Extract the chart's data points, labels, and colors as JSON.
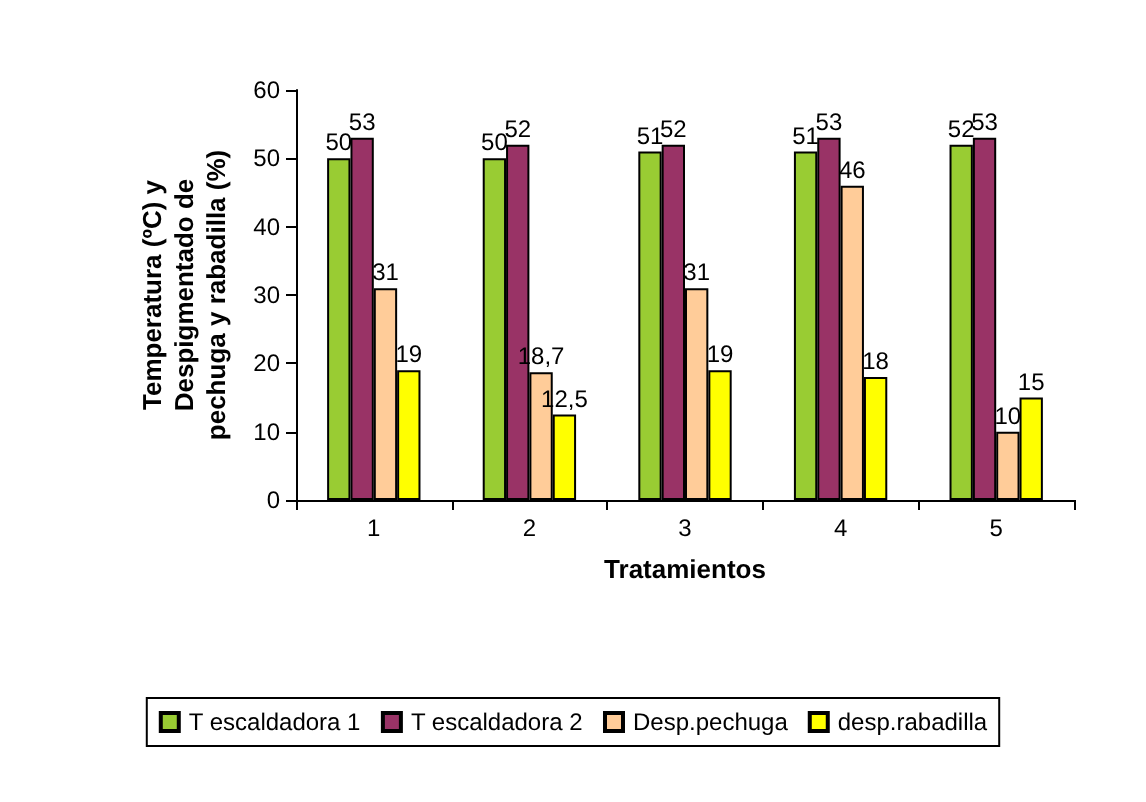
{
  "chart_data": {
    "type": "bar",
    "xlabel": "Tratamientos",
    "ylabel": "Temperatura (ºC) y\nDespigmentado de\npechuga y rabadilla (%)",
    "categories": [
      "1",
      "2",
      "3",
      "4",
      "5"
    ],
    "series": [
      {
        "name": "T escaldadora 1",
        "color": "#99cc33",
        "values": [
          50,
          50,
          51,
          51,
          52
        ],
        "value_labels": [
          "50",
          "50",
          "51",
          "51",
          "52"
        ]
      },
      {
        "name": "T escaldadora 2",
        "color": "#993366",
        "values": [
          53,
          52,
          52,
          53,
          53
        ],
        "value_labels": [
          "53",
          "52",
          "52",
          "53",
          "53"
        ]
      },
      {
        "name": "Desp.pechuga",
        "color": "#ffcc99",
        "values": [
          31,
          18.7,
          31,
          46,
          10
        ],
        "value_labels": [
          "31",
          "18,7",
          "31",
          "46",
          "10"
        ]
      },
      {
        "name": "desp.rabadilla",
        "color": "#ffff00",
        "values": [
          19,
          12.5,
          19,
          18,
          15
        ],
        "value_labels": [
          "19",
          "12,5",
          "19",
          "18",
          "15"
        ]
      }
    ],
    "ylim": [
      0,
      60
    ],
    "yticks": [
      0,
      10,
      20,
      30,
      40,
      50,
      60
    ],
    "grid": false,
    "legend": "bottom"
  }
}
